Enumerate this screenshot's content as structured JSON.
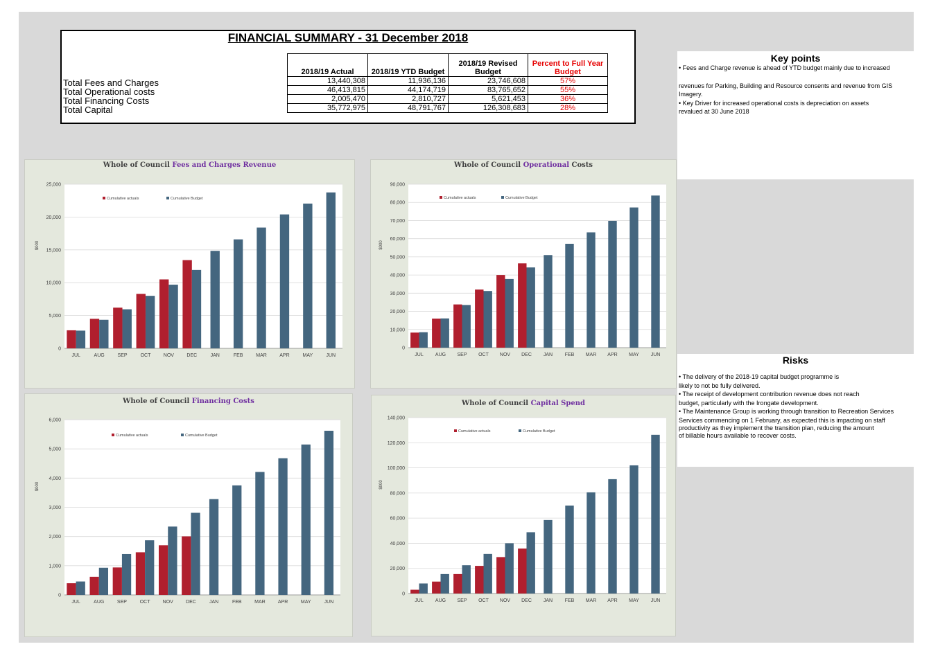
{
  "summary": {
    "title": "FINANCIAL SUMMARY - 31 December 2018",
    "headers": [
      "2018/19 Actual",
      "2018/19 YTD Budget",
      "2018/19 Revised Budget",
      "Percent to Full Year Budget"
    ],
    "rows": [
      {
        "label": "Total Fees and Charges",
        "actual": "13,440,308",
        "ytd": "11,936,136",
        "revised": "23,746,608",
        "pct": "57%"
      },
      {
        "label": "Total Operational costs",
        "actual": "46,413,815",
        "ytd": "44,174,719",
        "revised": "83,765,652",
        "pct": "55%"
      },
      {
        "label": "Total Financing Costs",
        "actual": "2,005,470",
        "ytd": "2,810,727",
        "revised": "5,621,453",
        "pct": "36%"
      },
      {
        "label": "Total Capital",
        "actual": "35,772,975",
        "ytd": "48,791,767",
        "revised": "126,308,683",
        "pct": "28%"
      }
    ]
  },
  "key_points": {
    "title": "Key points",
    "lines": [
      "• Fees and Charge revenue is ahead of YTD budget mainly due to increased",
      "",
      "revenues for Parking, Building and Resource consents and revenue from GIS Imagery.",
      "• Key Driver for increased operational costs is depreciation on assets",
      "revalued at 30 June 2018"
    ]
  },
  "risks": {
    "title": "Risks",
    "lines": [
      "• The delivery of the 2018-19 capital budget programme is",
      "likely to not be fully delivered.",
      "• The receipt of development contribution revenue does not reach",
      "budget, particularly with the Irongate development.",
      "• The Maintenance Group is working through transition to Recreation Services",
      "Services commencing on 1 February, as expected this is impacting on staff",
      "productivity as they implement the transition plan, reducing the amount",
      "of billable hours available to recover costs."
    ]
  },
  "colors": {
    "actual": "#b01f2e",
    "budget": "#44667f",
    "chart_bg": "#e4e8dd",
    "highlight": "#7030a0"
  },
  "chart_data": [
    {
      "type": "bar",
      "title_prefix": "Whole of Council ",
      "title_highlight": "Fees and Charges Revenue",
      "title_suffix": "",
      "ylabel": "$000",
      "categories": [
        "JUL",
        "AUG",
        "SEP",
        "OCT",
        "NOV",
        "DEC",
        "JAN",
        "FEB",
        "MAR",
        "APR",
        "MAY",
        "JUN"
      ],
      "ylim": [
        0,
        25000
      ],
      "yticks": [
        0,
        5000,
        10000,
        15000,
        20000,
        25000
      ],
      "ytick_labels": [
        "0",
        "5,000",
        "10,000",
        "15,000",
        "20,000",
        "25,000"
      ],
      "legend": [
        "Cumulative actuals",
        "Cumulative Budget"
      ],
      "series": [
        {
          "name": "Cumulative actuals",
          "values": [
            2750,
            4500,
            6200,
            8300,
            10500,
            13440,
            null,
            null,
            null,
            null,
            null,
            null
          ]
        },
        {
          "name": "Cumulative Budget",
          "values": [
            2700,
            4350,
            5950,
            8000,
            9700,
            11936,
            14850,
            16600,
            18400,
            20400,
            22050,
            23747
          ]
        }
      ]
    },
    {
      "type": "bar",
      "title_prefix": "Whole of Council ",
      "title_highlight": "Operational",
      "title_suffix": " Costs",
      "ylabel": "$000",
      "categories": [
        "JUL",
        "AUG",
        "SEP",
        "OCT",
        "NOV",
        "DEC",
        "JAN",
        "FEB",
        "MAR",
        "APR",
        "MAY",
        "JUN"
      ],
      "ylim": [
        0,
        90000
      ],
      "yticks": [
        0,
        10000,
        20000,
        30000,
        40000,
        50000,
        60000,
        70000,
        80000,
        90000
      ],
      "ytick_labels": [
        "0",
        "10,000",
        "20,000",
        "30,000",
        "40,000",
        "50,000",
        "60,000",
        "70,000",
        "80,000",
        "90,000"
      ],
      "legend": [
        "Cumulative actuals",
        "Cumulative Budget"
      ],
      "series": [
        {
          "name": "Cumulative actuals",
          "values": [
            8300,
            16000,
            23800,
            32000,
            40000,
            46414,
            null,
            null,
            null,
            null,
            null,
            null
          ]
        },
        {
          "name": "Cumulative Budget",
          "values": [
            8500,
            16100,
            23500,
            31200,
            37800,
            44175,
            51000,
            57200,
            63500,
            69800,
            77200,
            83766
          ]
        }
      ]
    },
    {
      "type": "bar",
      "title_prefix": "Whole of Council ",
      "title_highlight": "Financing Costs",
      "title_suffix": "",
      "ylabel": "$000",
      "categories": [
        "JUL",
        "AUG",
        "SEP",
        "OCT",
        "NOV",
        "DEC",
        "JAN",
        "FEB",
        "MAR",
        "APR",
        "MAY",
        "JUN"
      ],
      "ylim": [
        0,
        6000
      ],
      "yticks": [
        0,
        1000,
        2000,
        3000,
        4000,
        5000,
        6000
      ],
      "ytick_labels": [
        "0",
        "1,000",
        "2,000",
        "3,000",
        "4,000",
        "5,000",
        "6,000"
      ],
      "legend": [
        "Cumulative actuals",
        "Cumulative Budget"
      ],
      "series": [
        {
          "name": "Cumulative actuals",
          "values": [
            400,
            620,
            940,
            1460,
            1700,
            2005,
            null,
            null,
            null,
            null,
            null,
            null
          ]
        },
        {
          "name": "Cumulative Budget",
          "values": [
            460,
            930,
            1400,
            1870,
            2340,
            2811,
            3280,
            3750,
            4210,
            4680,
            5150,
            5621
          ]
        }
      ]
    },
    {
      "type": "bar",
      "title_prefix": "Whole of Council ",
      "title_highlight": "Capital Spend",
      "title_suffix": "",
      "ylabel": "$000",
      "categories": [
        "JUL",
        "AUG",
        "SEP",
        "OCT",
        "NOV",
        "DEC",
        "JAN",
        "FEB",
        "MAR",
        "APR",
        "MAY",
        "JUN"
      ],
      "ylim": [
        0,
        140000
      ],
      "yticks": [
        0,
        20000,
        40000,
        60000,
        80000,
        100000,
        120000,
        140000
      ],
      "ytick_labels": [
        "0",
        "20,000",
        "40,000",
        "60,000",
        "80,000",
        "100,000",
        "120,000",
        "140,000"
      ],
      "legend": [
        "Cumulative actuals",
        "Cumulative Budget"
      ],
      "series": [
        {
          "name": "Cumulative actuals",
          "values": [
            3000,
            9500,
            15500,
            22000,
            29000,
            35773,
            null,
            null,
            null,
            null,
            null,
            null
          ]
        },
        {
          "name": "Cumulative Budget",
          "values": [
            8000,
            15500,
            22500,
            31500,
            40000,
            48792,
            58500,
            70000,
            80500,
            91000,
            102000,
            126309
          ]
        }
      ]
    }
  ]
}
